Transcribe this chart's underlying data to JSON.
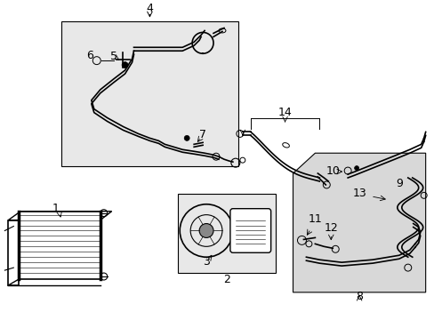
{
  "bg_color": "#ffffff",
  "box1_fill": "#e8e8e8",
  "box2_fill": "#e8e8e8",
  "box3_fill": "#d8d8d8"
}
